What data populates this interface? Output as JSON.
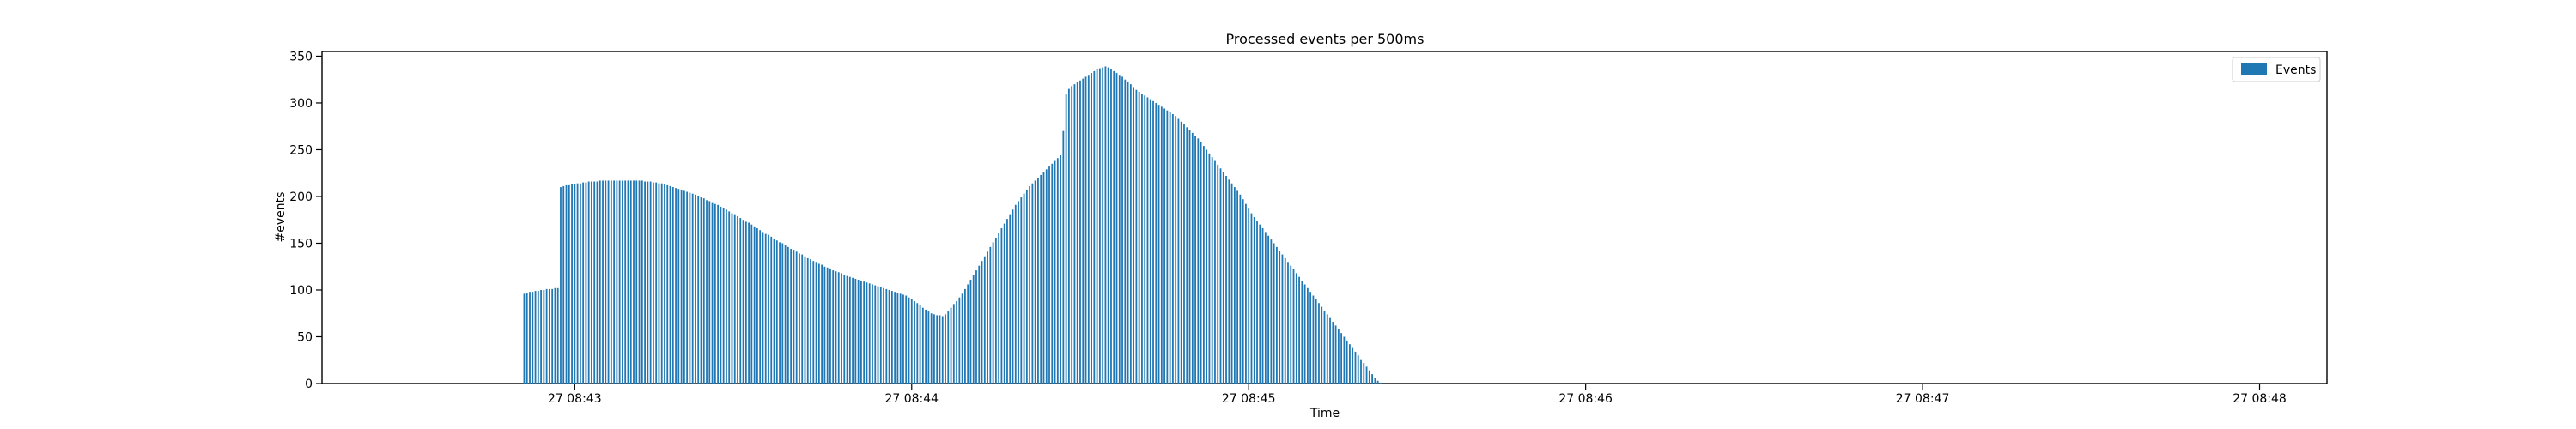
{
  "chart_data": {
    "type": "bar",
    "title": "Processed events per 500ms",
    "xlabel": "Time",
    "ylabel": "#events",
    "ylim": [
      0,
      355
    ],
    "yticks": [
      0,
      50,
      100,
      150,
      200,
      250,
      300,
      350
    ],
    "xticks": [
      {
        "label": "27 08:43",
        "t": "08:43:00"
      },
      {
        "label": "27 08:44",
        "t": "08:44:00"
      },
      {
        "label": "27 08:45",
        "t": "08:45:00"
      },
      {
        "label": "27 08:46",
        "t": "08:46:00"
      },
      {
        "label": "27 08:47",
        "t": "08:47:00"
      },
      {
        "label": "27 08:48",
        "t": "08:48:00"
      }
    ],
    "xlim": [
      "08:42:15",
      "08:48:12"
    ],
    "grid": false,
    "legend_position": "top-right",
    "bar_color": "#1f77b4",
    "series": [
      {
        "name": "Events",
        "start": "08:42:51",
        "interval_ms": 500,
        "values": [
          96,
          97,
          98,
          98,
          99,
          99,
          100,
          100,
          101,
          101,
          101,
          102,
          102,
          210,
          211,
          212,
          212,
          213,
          213,
          214,
          214,
          215,
          215,
          216,
          216,
          216,
          216,
          217,
          217,
          217,
          217,
          217,
          217,
          217,
          217,
          217,
          217,
          217,
          217,
          217,
          217,
          217,
          217,
          216,
          216,
          216,
          215,
          215,
          214,
          214,
          213,
          212,
          211,
          210,
          209,
          208,
          207,
          206,
          205,
          204,
          203,
          202,
          200,
          199,
          198,
          196,
          195,
          193,
          192,
          191,
          189,
          188,
          186,
          184,
          182,
          181,
          179,
          177,
          175,
          173,
          172,
          170,
          168,
          166,
          164,
          162,
          160,
          159,
          157,
          155,
          153,
          151,
          150,
          148,
          146,
          144,
          143,
          141,
          139,
          138,
          136,
          134,
          133,
          131,
          130,
          128,
          127,
          125,
          124,
          123,
          121,
          120,
          119,
          118,
          116,
          115,
          114,
          113,
          112,
          111,
          110,
          109,
          108,
          107,
          106,
          105,
          104,
          103,
          102,
          101,
          100,
          99,
          98,
          97,
          96,
          95,
          94,
          92,
          90,
          88,
          86,
          84,
          81,
          79,
          77,
          75,
          74,
          73,
          73,
          72,
          74,
          77,
          81,
          85,
          88,
          92,
          96,
          101,
          106,
          111,
          116,
          121,
          126,
          131,
          136,
          141,
          146,
          151,
          156,
          161,
          166,
          171,
          176,
          181,
          186,
          191,
          195,
          199,
          203,
          207,
          211,
          214,
          217,
          220,
          223,
          226,
          229,
          232,
          235,
          238,
          241,
          244,
          270,
          310,
          315,
          318,
          320,
          322,
          324,
          326,
          328,
          330,
          332,
          334,
          336,
          337,
          338,
          339,
          338,
          336,
          334,
          332,
          330,
          328,
          325,
          323,
          320,
          317,
          314,
          312,
          310,
          308,
          306,
          304,
          302,
          300,
          298,
          296,
          294,
          292,
          290,
          288,
          286,
          283,
          280,
          277,
          274,
          271,
          268,
          265,
          262,
          258,
          254,
          250,
          246,
          242,
          238,
          234,
          230,
          226,
          222,
          218,
          214,
          210,
          206,
          202,
          197,
          192,
          187,
          182,
          178,
          174,
          170,
          166,
          162,
          158,
          154,
          150,
          146,
          142,
          138,
          134,
          130,
          126,
          122,
          118,
          114,
          110,
          106,
          102,
          98,
          94,
          90,
          86,
          82,
          78,
          74,
          70,
          66,
          62,
          58,
          54,
          50,
          46,
          42,
          38,
          34,
          30,
          26,
          22,
          18,
          14,
          10,
          6,
          3,
          1,
          0
        ]
      }
    ],
    "secondary_bars": {
      "start": "08:42:51",
      "interval_ms": 500,
      "values": [
        0,
        0,
        0,
        0,
        0,
        0,
        0,
        0,
        0,
        0,
        0,
        0,
        0,
        0,
        0,
        0,
        0,
        0,
        0,
        0,
        0,
        0,
        0,
        0,
        0,
        0,
        0,
        0,
        0,
        0,
        0,
        0,
        0,
        0,
        0,
        0,
        0,
        0,
        0,
        0,
        0,
        0,
        0,
        0,
        0,
        0,
        0,
        0,
        0,
        0,
        0,
        0,
        0,
        0,
        0,
        0,
        0,
        0,
        0,
        0,
        0,
        0,
        0,
        0,
        0,
        0,
        0,
        0,
        0,
        0,
        0,
        0,
        0,
        0,
        0,
        0,
        0,
        0,
        0,
        0,
        0,
        0,
        0,
        0,
        0,
        0,
        0,
        0,
        0,
        0,
        0,
        0,
        0,
        0,
        0,
        0,
        0,
        0,
        0,
        0,
        0,
        0,
        0,
        0,
        0,
        0,
        0,
        0,
        0,
        0,
        0,
        0,
        0,
        0,
        0,
        0,
        0,
        0,
        0,
        0,
        0,
        0,
        0,
        0,
        0,
        0,
        0,
        0,
        0,
        0,
        0,
        0,
        0,
        0,
        0,
        0,
        0,
        0,
        0,
        0,
        0,
        0,
        0,
        0,
        0,
        0,
        0,
        0,
        0,
        0,
        0,
        0,
        0,
        0,
        0,
        0,
        0,
        0,
        0,
        0,
        0,
        0,
        0,
        0,
        0,
        0,
        0,
        0,
        0,
        0,
        0,
        0,
        0,
        0,
        0,
        0,
        0,
        0,
        0,
        0,
        0,
        0,
        0,
        0,
        0,
        0,
        0,
        0,
        0,
        0,
        0,
        0,
        0,
        0,
        0,
        0,
        0,
        0,
        0,
        0,
        0,
        0,
        0,
        0,
        0,
        0,
        0,
        0,
        0,
        0,
        0,
        0,
        0,
        0,
        0,
        0,
        0,
        0,
        0,
        0,
        0,
        0,
        0,
        0,
        0,
        0,
        0,
        0,
        0,
        0,
        0,
        0,
        0,
        0,
        0,
        0,
        0,
        0,
        0,
        0,
        0,
        0,
        0,
        0,
        0,
        0,
        0,
        0,
        0,
        0,
        0,
        0,
        0,
        0,
        0,
        0,
        0,
        0,
        0,
        0,
        0,
        0,
        0,
        0,
        0,
        0,
        0,
        0,
        0,
        0,
        0,
        0,
        0,
        0,
        0,
        0,
        0,
        0,
        0,
        0,
        0,
        0,
        0,
        0,
        0,
        0,
        0,
        0,
        0,
        0,
        0,
        0,
        0,
        0,
        0,
        0,
        0,
        0,
        0,
        0,
        0,
        0,
        0,
        0,
        0,
        0,
        0
      ]
    }
  }
}
